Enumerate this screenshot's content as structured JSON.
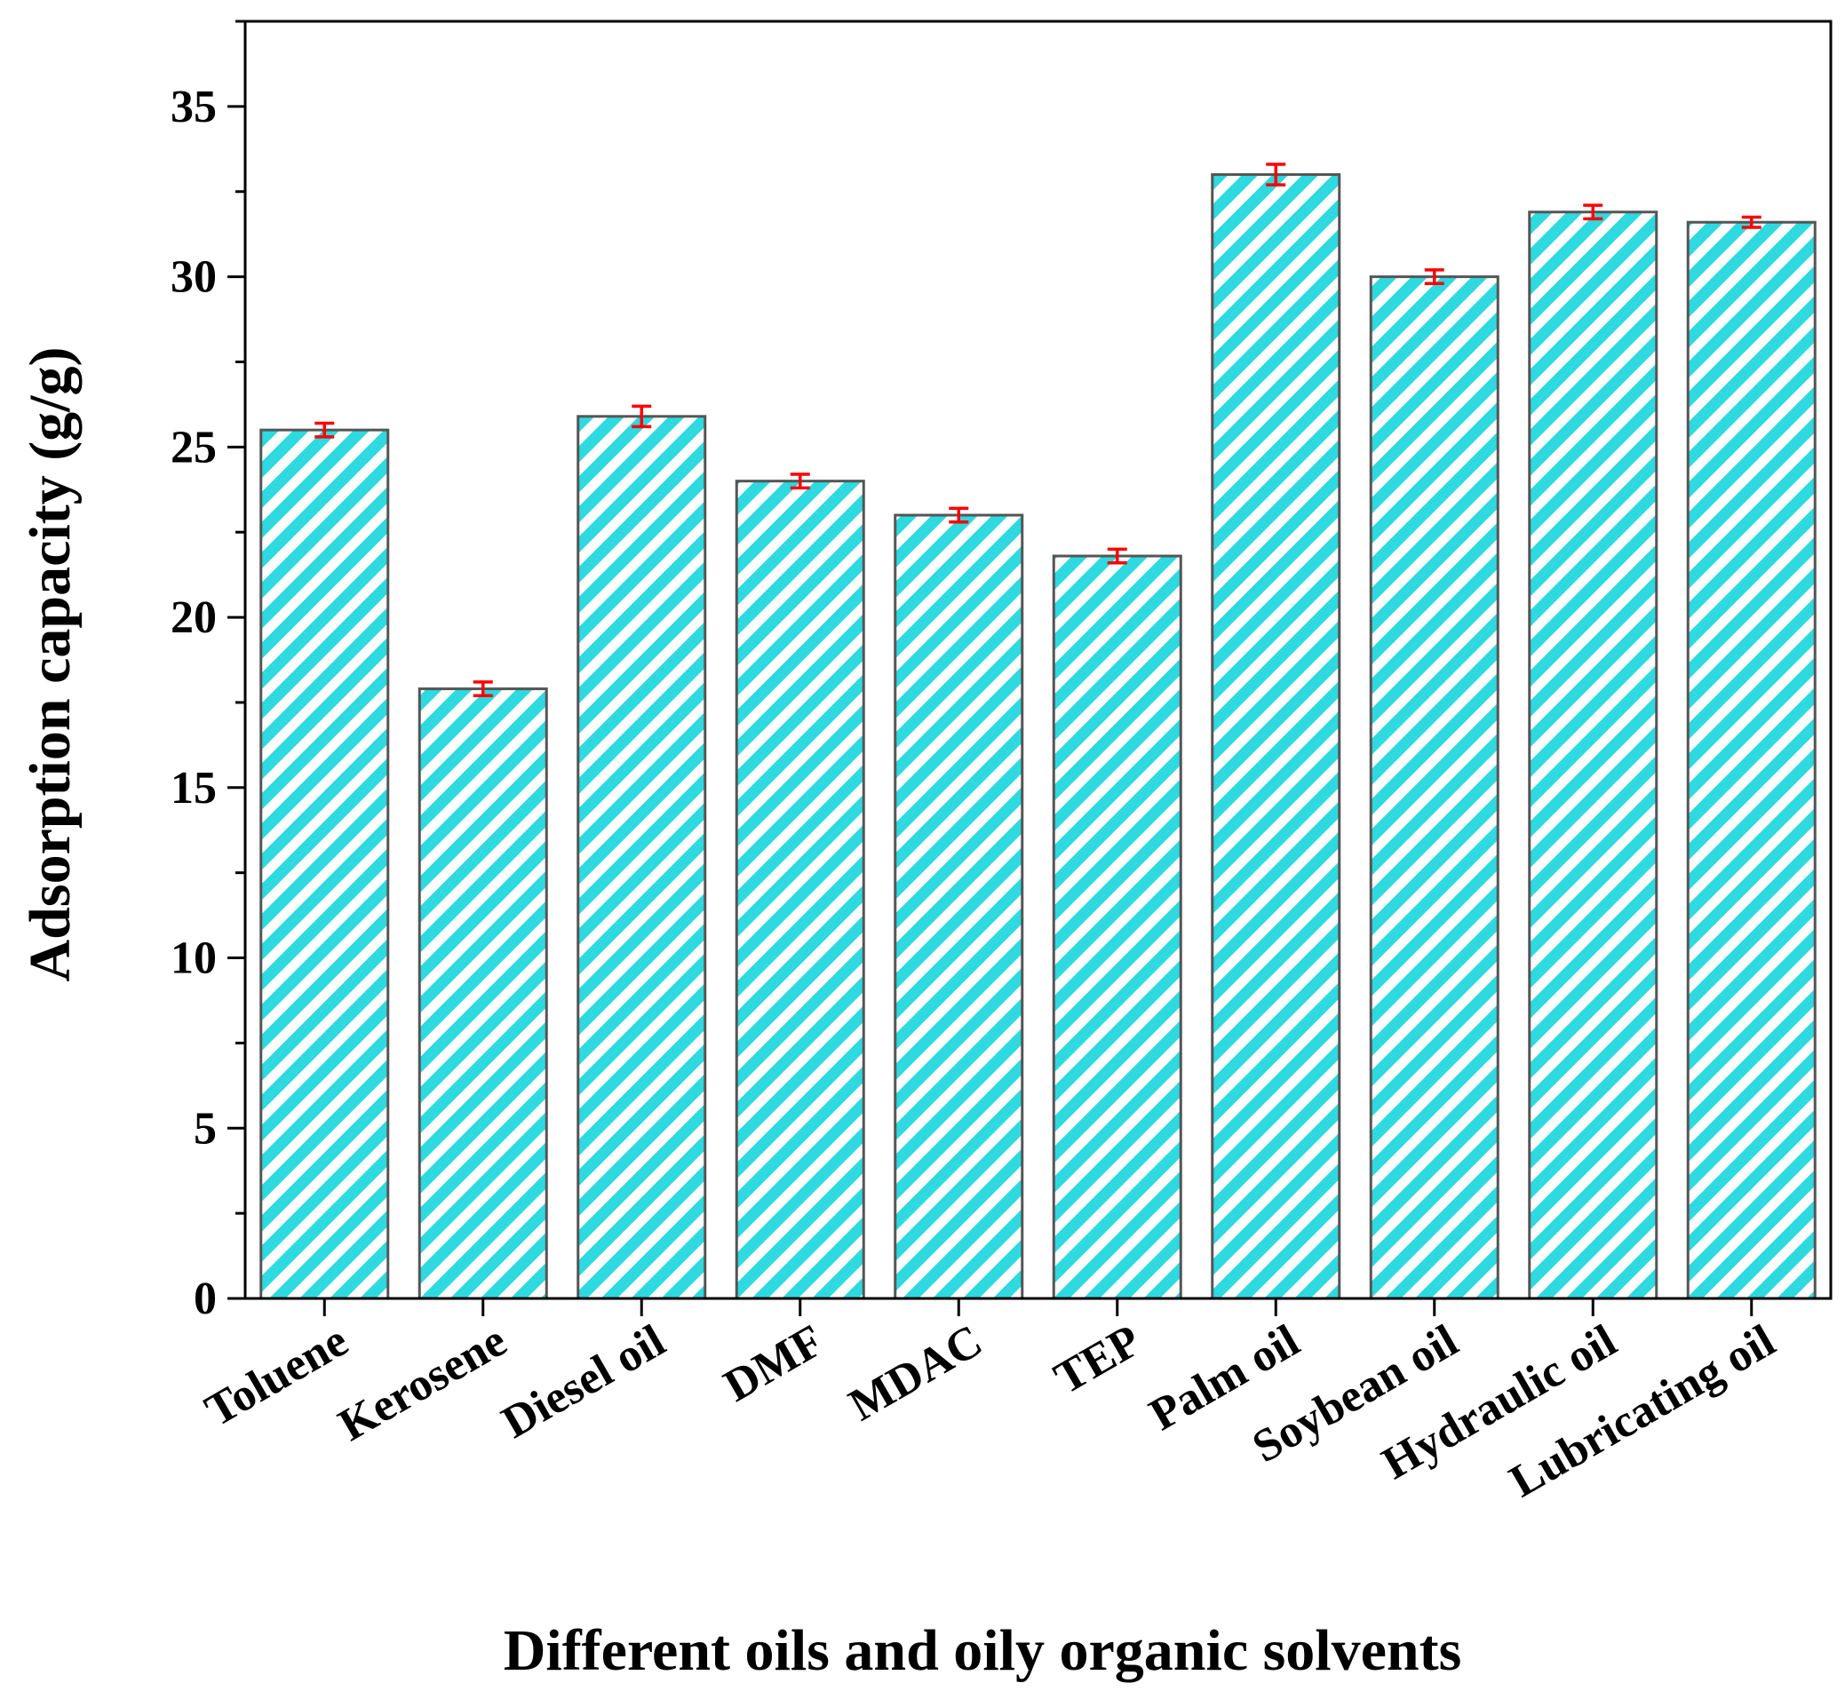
{
  "chart_data": {
    "type": "bar",
    "title": "",
    "xlabel": "Different oils and oily organic solvents",
    "ylabel": "Adsorption capacity (g/g)",
    "ylim": [
      0,
      37.5
    ],
    "yticks": [
      0,
      5,
      10,
      15,
      20,
      25,
      30,
      35
    ],
    "grid": false,
    "categories": [
      "Toluene",
      "Kerosene",
      "Diesel oil",
      "DMF",
      "MDAC",
      "TEP",
      "Palm oil",
      "Soybean oil",
      "Hydraulic oil",
      "Lubricating oil"
    ],
    "values": [
      25.5,
      17.9,
      25.9,
      24.0,
      23.0,
      21.8,
      33.0,
      30.0,
      31.9,
      31.6
    ],
    "errors": [
      0.2,
      0.2,
      0.3,
      0.2,
      0.2,
      0.2,
      0.3,
      0.2,
      0.2,
      0.15
    ],
    "colors": {
      "fill": "#2ed9e0",
      "hatch_bg": "#ffffff",
      "edge": "#555555",
      "error_bar": "#ff0000",
      "axis": "#000000"
    }
  }
}
